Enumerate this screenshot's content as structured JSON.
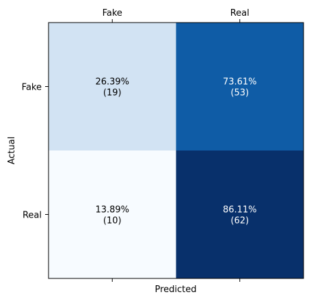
{
  "chart_data": {
    "type": "heatmap",
    "title": "",
    "xlabel": "Predicted",
    "ylabel": "Actual",
    "x_categories": [
      "Fake",
      "Real"
    ],
    "y_categories": [
      "Fake",
      "Real"
    ],
    "x_tick_position": "top-and-bottom",
    "values": [
      [
        26.39,
        73.61
      ],
      [
        13.89,
        86.11
      ]
    ],
    "counts": [
      [
        19,
        53
      ],
      [
        10,
        62
      ]
    ],
    "cell_labels": [
      [
        "26.39%",
        "(19)",
        "73.61%",
        "(53)"
      ],
      [
        "13.89%",
        "(10)",
        "86.11%",
        "(62)"
      ]
    ],
    "cell_colors": [
      [
        "#d2e3f3",
        "#0f5ca6"
      ],
      [
        "#f7fbff",
        "#08306b"
      ]
    ],
    "text_colors": [
      [
        "#000000",
        "#ffffff"
      ],
      [
        "#000000",
        "#ffffff"
      ]
    ],
    "colormap": "Blues",
    "grid": false
  }
}
